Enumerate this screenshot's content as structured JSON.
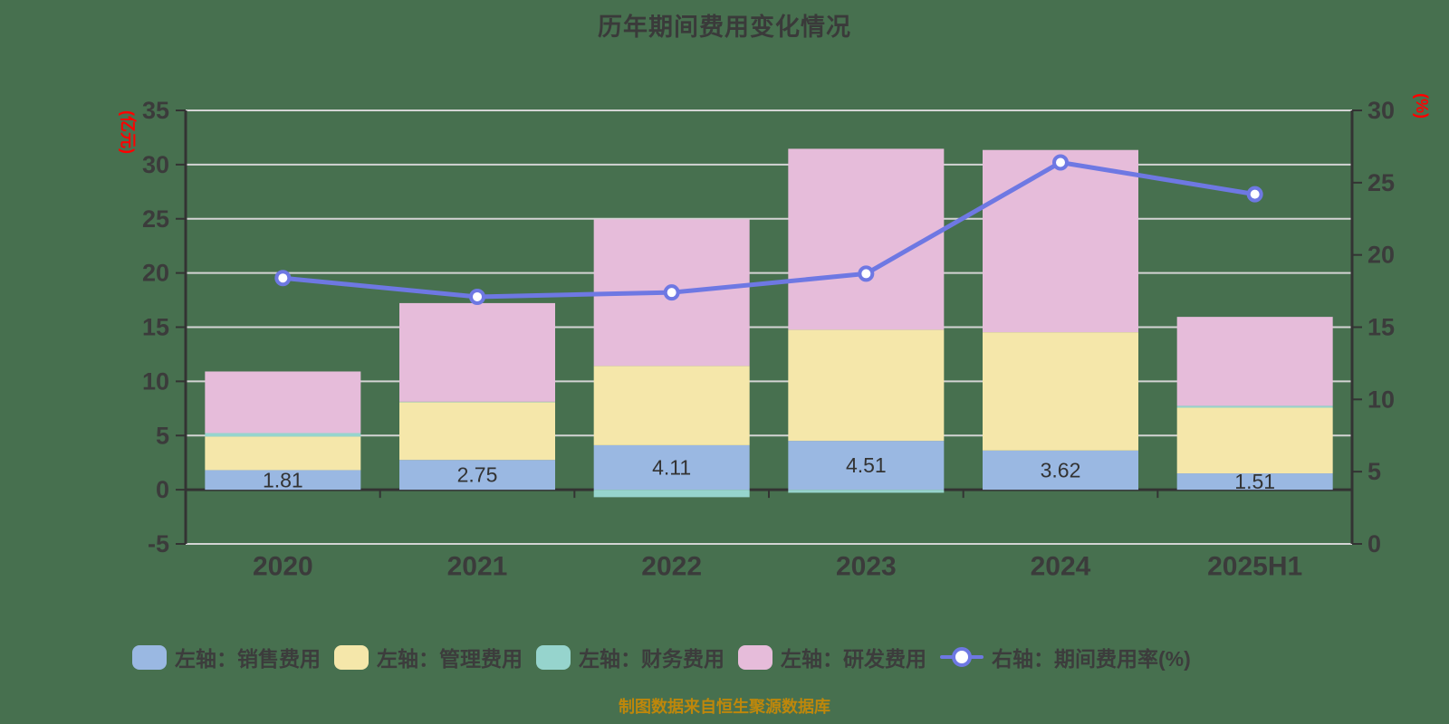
{
  "title": "历年期间费用变化情况",
  "footer": {
    "source_note": "制图数据来自恒生聚源数据库"
  },
  "colors": {
    "background": "#47704f",
    "title_text": "#3a3a3a",
    "axis_text": "#3b3b3b",
    "axis_line": "#333333",
    "grid_line": "#d4d4d4",
    "unit_text": "#ff0000",
    "bar_label_text": "#333333",
    "legend_text": "#3c3c3c",
    "footer_text": "#be870b",
    "marker_fill": "#ffffff"
  },
  "chart_data": {
    "type": "bar",
    "subtype": "stacked-bars-with-right-axis-line",
    "title": "历年期间费用变化情况",
    "categories": [
      "2020",
      "2021",
      "2022",
      "2023",
      "2024",
      "2025H1"
    ],
    "left_axis": {
      "unit": "(亿元)",
      "min": -5,
      "max": 35,
      "ticks": [
        35,
        30,
        25,
        20,
        15,
        10,
        5,
        0,
        -5
      ]
    },
    "right_axis": {
      "unit": "(%)",
      "min": 0,
      "max": 30,
      "ticks": [
        30,
        25,
        20,
        15,
        10,
        5,
        0
      ]
    },
    "grid": true,
    "legend_position": "bottom",
    "bar_series": [
      {
        "name": "左轴：销售费用",
        "color": "#9ab8e2",
        "show_labels": true,
        "values": [
          1.81,
          2.75,
          4.11,
          4.51,
          3.62,
          1.51
        ]
      },
      {
        "name": "左轴：管理费用",
        "color": "#f5e7aa",
        "show_labels": false,
        "values": [
          3.09,
          5.33,
          7.31,
          10.25,
          10.91,
          6.06
        ]
      },
      {
        "name": "左轴：财务费用",
        "color": "#96d4cd",
        "show_labels": false,
        "values": [
          0.33,
          0.04,
          -0.69,
          -0.28,
          0,
          0.17
        ]
      },
      {
        "name": "左轴：研发费用",
        "color": "#e6bcda",
        "show_labels": false,
        "values": [
          5.68,
          9.1,
          13.53,
          16.7,
          16.82,
          8.21
        ]
      }
    ],
    "line_series": {
      "name": "右轴：期间费用率(%)",
      "color": "#6e78e3",
      "axis": "right",
      "values": [
        18.4,
        17.1,
        17.4,
        18.7,
        26.4,
        24.2
      ]
    }
  }
}
